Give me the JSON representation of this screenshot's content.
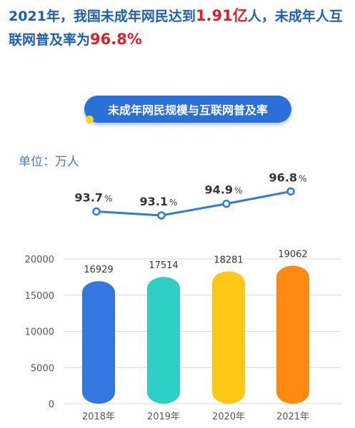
{
  "headline": {
    "part1": "2021年，我国未成年网民达到",
    "highlight1": "1.91亿",
    "part2": "人，未成年人互联网普及率为",
    "highlight2": "96.8%"
  },
  "banner_title": "未成年网民规模与互联网普及率",
  "unit_label": "单位：万人",
  "colors": {
    "headline": "#1e5fae",
    "highlight": "#e21f26",
    "banner": "#2b6fd8",
    "line": "#2f7bd9",
    "bars": [
      "#3477e0",
      "#2ecfc4",
      "#ffc816",
      "#ff8a12"
    ]
  },
  "chart_data": [
    {
      "type": "bar",
      "categories": [
        "2018年",
        "2019年",
        "2020年",
        "2021年"
      ],
      "values": [
        16929,
        17514,
        18281,
        19062
      ],
      "ylim": [
        0,
        20000
      ],
      "yticks": [
        0,
        5000,
        10000,
        15000,
        20000
      ],
      "grid": true,
      "data_labels": [
        "16929",
        "17514",
        "18281",
        "19062"
      ]
    },
    {
      "type": "line",
      "categories": [
        "2018年",
        "2019年",
        "2020年",
        "2021年"
      ],
      "values": [
        93.7,
        93.1,
        94.9,
        96.8
      ],
      "data_labels": [
        {
          "num": "93.7",
          "pct": "%"
        },
        {
          "num": "93.1",
          "pct": "%"
        },
        {
          "num": "94.9",
          "pct": "%"
        },
        {
          "num": "96.8",
          "pct": "%"
        }
      ]
    }
  ]
}
